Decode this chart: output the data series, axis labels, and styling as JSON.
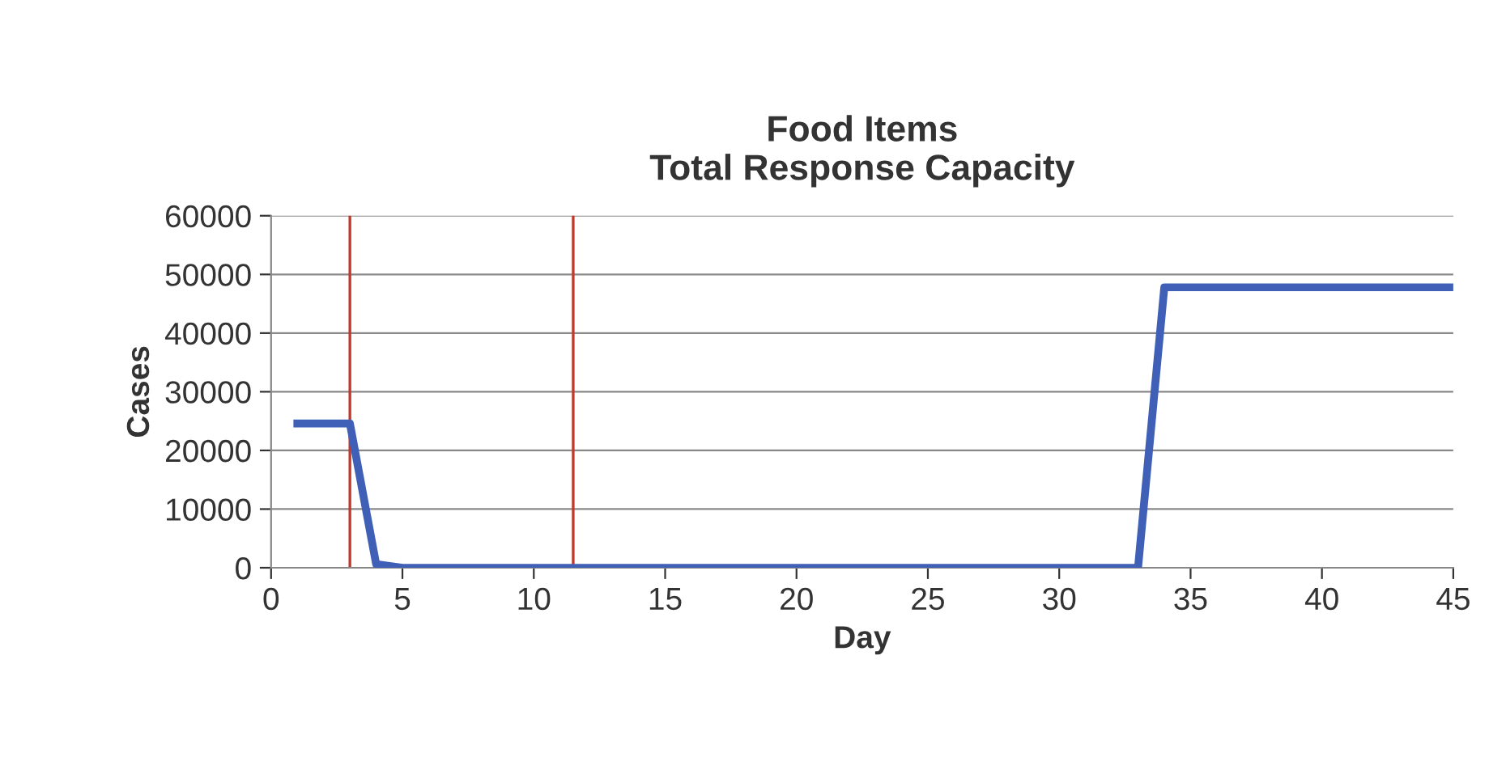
{
  "chart_data": {
    "type": "line",
    "title": "Food Items\nTotal Response Capacity",
    "xlabel": "Day",
    "ylabel": "Cases",
    "series": [
      {
        "color": "#4060b8",
        "x": [
          1,
          2,
          3,
          4,
          5,
          10,
          15,
          20,
          25,
          30,
          33,
          34,
          35,
          40,
          45
        ],
        "values": [
          24600,
          24600,
          24600,
          600,
          0,
          0,
          0,
          0,
          0,
          0,
          0,
          47800,
          47800,
          47800,
          47800
        ]
      }
    ],
    "xlim": [
      0,
      45
    ],
    "xticks": [
      0,
      5,
      10,
      15,
      20,
      25,
      30,
      35,
      40,
      45
    ],
    "ylim": [
      0,
      60000
    ],
    "yticks": [
      0,
      10000,
      20000,
      30000,
      40000,
      50000,
      60000
    ],
    "ref_lines": [
      {
        "axis": "x",
        "value": 3,
        "color": "#c0392b"
      },
      {
        "axis": "x",
        "value": 11.5,
        "color": "#c0392b"
      }
    ],
    "grid": "y",
    "legend": false,
    "marker": "none",
    "line_style": "solid"
  }
}
